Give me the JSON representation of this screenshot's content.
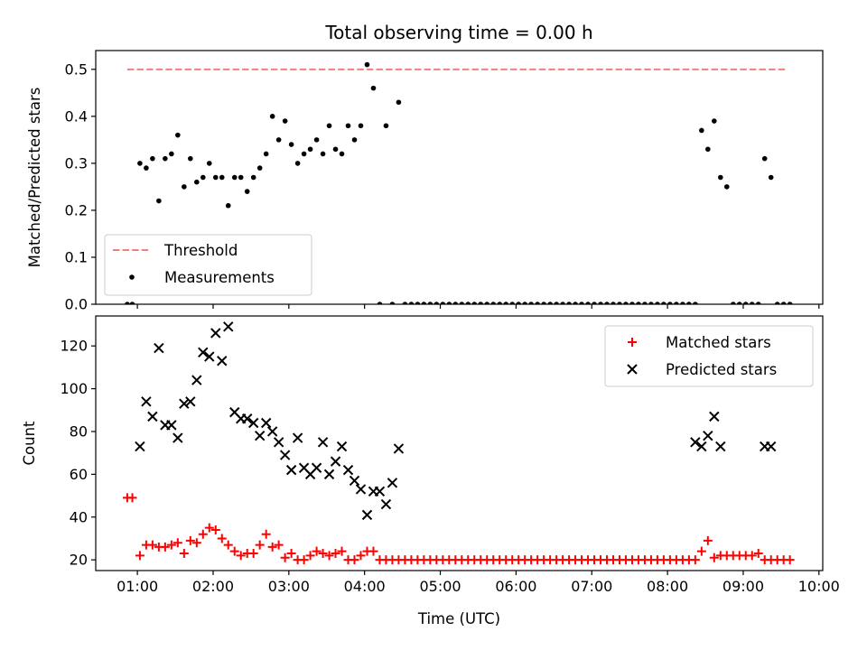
{
  "chart_data": [
    {
      "type": "scatter",
      "title": "Total observing time = 0.00 h",
      "xlabel": "",
      "ylabel": "Matched/Predicted stars",
      "xlim": [
        "00:27",
        "10:03"
      ],
      "ylim": [
        0,
        0.54
      ],
      "yticks": [
        0.0,
        0.1,
        0.2,
        0.3,
        0.4,
        0.5
      ],
      "xticks": [
        "01:00",
        "02:00",
        "03:00",
        "04:00",
        "05:00",
        "06:00",
        "07:00",
        "08:00",
        "09:00",
        "10:00"
      ],
      "grid": false,
      "legend_position": "lower-left",
      "series": [
        {
          "name": "Threshold",
          "style": "dashed-line",
          "color": "#f08080",
          "x": [
            "00:52",
            "09:35"
          ],
          "y": [
            0.5,
            0.5
          ]
        },
        {
          "name": "Measurements",
          "style": "dot",
          "color": "#000000",
          "x": [
            "00:52",
            "00:56",
            "01:02",
            "01:07",
            "01:12",
            "01:17",
            "01:22",
            "01:27",
            "01:32",
            "01:37",
            "01:42",
            "01:47",
            "01:52",
            "01:57",
            "02:02",
            "02:07",
            "02:12",
            "02:17",
            "02:22",
            "02:27",
            "02:32",
            "02:37",
            "02:42",
            "02:47",
            "02:52",
            "02:57",
            "03:02",
            "03:07",
            "03:12",
            "03:17",
            "03:22",
            "03:27",
            "03:32",
            "03:37",
            "03:42",
            "03:47",
            "03:52",
            "03:57",
            "04:02",
            "04:07",
            "04:12",
            "04:17",
            "04:22",
            "04:27",
            "04:32",
            "04:37",
            "04:42",
            "04:47",
            "04:52",
            "04:57",
            "05:02",
            "05:07",
            "05:12",
            "05:17",
            "05:22",
            "05:27",
            "05:32",
            "05:37",
            "05:42",
            "05:47",
            "05:52",
            "05:57",
            "06:02",
            "06:07",
            "06:12",
            "06:17",
            "06:22",
            "06:27",
            "06:32",
            "06:37",
            "06:42",
            "06:47",
            "06:52",
            "06:57",
            "07:02",
            "07:07",
            "07:12",
            "07:17",
            "07:22",
            "07:27",
            "07:32",
            "07:37",
            "07:42",
            "07:47",
            "07:52",
            "07:57",
            "08:02",
            "08:07",
            "08:12",
            "08:17",
            "08:22",
            "08:27",
            "08:32",
            "08:37",
            "08:42",
            "08:47",
            "08:52",
            "08:57",
            "09:02",
            "09:07",
            "09:12",
            "09:17",
            "09:22",
            "09:27",
            "09:32",
            "09:37"
          ],
          "y": [
            0,
            0,
            0.3,
            0.29,
            0.31,
            0.22,
            0.31,
            0.32,
            0.36,
            0.25,
            0.31,
            0.26,
            0.27,
            0.3,
            0.27,
            0.27,
            0.21,
            0.27,
            0.27,
            0.24,
            0.27,
            0.29,
            0.32,
            0.4,
            0.35,
            0.39,
            0.34,
            0.3,
            0.32,
            0.33,
            0.35,
            0.32,
            0.38,
            0.33,
            0.32,
            0.38,
            0.35,
            0.38,
            0.51,
            0.46,
            0,
            0.38,
            0,
            0.43,
            0,
            0,
            0,
            0,
            0,
            0,
            0,
            0,
            0,
            0,
            0,
            0,
            0,
            0,
            0,
            0,
            0,
            0,
            0,
            0,
            0,
            0,
            0,
            0,
            0,
            0,
            0,
            0,
            0,
            0,
            0,
            0,
            0,
            0,
            0,
            0,
            0,
            0,
            0,
            0,
            0,
            0,
            0,
            0,
            0,
            0,
            0,
            0.37,
            0.33,
            0.39,
            0.27,
            0.25,
            0,
            0,
            0,
            0,
            0,
            0.31,
            0.27,
            0,
            0,
            0
          ]
        }
      ]
    },
    {
      "type": "scatter",
      "title": "",
      "xlabel": "Time (UTC)",
      "ylabel": "Count",
      "xlim": [
        "00:27",
        "10:03"
      ],
      "ylim": [
        15,
        134
      ],
      "yticks": [
        20,
        40,
        60,
        80,
        100,
        120
      ],
      "xticks": [
        "01:00",
        "02:00",
        "03:00",
        "04:00",
        "05:00",
        "06:00",
        "07:00",
        "08:00",
        "09:00",
        "10:00"
      ],
      "grid": false,
      "legend_position": "upper-right",
      "series": [
        {
          "name": "Matched stars",
          "style": "plus",
          "color": "#ff0000",
          "x": [
            "00:52",
            "00:56",
            "01:02",
            "01:07",
            "01:12",
            "01:17",
            "01:22",
            "01:27",
            "01:32",
            "01:37",
            "01:42",
            "01:47",
            "01:52",
            "01:57",
            "02:02",
            "02:07",
            "02:12",
            "02:17",
            "02:22",
            "02:27",
            "02:32",
            "02:37",
            "02:42",
            "02:47",
            "02:52",
            "02:57",
            "03:02",
            "03:07",
            "03:12",
            "03:17",
            "03:22",
            "03:27",
            "03:32",
            "03:37",
            "03:42",
            "03:47",
            "03:52",
            "03:57",
            "04:02",
            "04:07",
            "04:12",
            "04:17",
            "04:22",
            "04:27",
            "04:32",
            "04:37",
            "04:42",
            "04:47",
            "04:52",
            "04:57",
            "05:02",
            "05:07",
            "05:12",
            "05:17",
            "05:22",
            "05:27",
            "05:32",
            "05:37",
            "05:42",
            "05:47",
            "05:52",
            "05:57",
            "06:02",
            "06:07",
            "06:12",
            "06:17",
            "06:22",
            "06:27",
            "06:32",
            "06:37",
            "06:42",
            "06:47",
            "06:52",
            "06:57",
            "07:02",
            "07:07",
            "07:12",
            "07:17",
            "07:22",
            "07:27",
            "07:32",
            "07:37",
            "07:42",
            "07:47",
            "07:52",
            "07:57",
            "08:02",
            "08:07",
            "08:12",
            "08:17",
            "08:22",
            "08:27",
            "08:32",
            "08:37",
            "08:42",
            "08:47",
            "08:52",
            "08:57",
            "09:02",
            "09:07",
            "09:12",
            "09:17",
            "09:22",
            "09:27",
            "09:32",
            "09:37"
          ],
          "y": [
            49,
            49,
            22,
            27,
            27,
            26,
            26,
            27,
            28,
            23,
            29,
            28,
            32,
            35,
            34,
            30,
            27,
            24,
            22,
            23,
            23,
            27,
            32,
            26,
            27,
            21,
            23,
            20,
            20,
            22,
            24,
            23,
            22,
            23,
            24,
            20,
            20,
            22,
            24,
            24,
            20,
            20,
            20,
            20,
            20,
            20,
            20,
            20,
            20,
            20,
            20,
            20,
            20,
            20,
            20,
            20,
            20,
            20,
            20,
            20,
            20,
            20,
            20,
            20,
            20,
            20,
            20,
            20,
            20,
            20,
            20,
            20,
            20,
            20,
            20,
            20,
            20,
            20,
            20,
            20,
            20,
            20,
            20,
            20,
            20,
            20,
            20,
            20,
            20,
            20,
            20,
            24,
            29,
            21,
            22,
            22,
            22,
            22,
            22,
            22,
            23,
            20,
            20,
            20,
            20,
            20
          ]
        },
        {
          "name": "Predicted stars",
          "style": "x",
          "color": "#000000",
          "x": [
            "01:02",
            "01:07",
            "01:12",
            "01:17",
            "01:22",
            "01:27",
            "01:32",
            "01:37",
            "01:42",
            "01:47",
            "01:52",
            "01:57",
            "02:02",
            "02:07",
            "02:12",
            "02:17",
            "02:22",
            "02:27",
            "02:32",
            "02:37",
            "02:42",
            "02:47",
            "02:52",
            "02:57",
            "03:02",
            "03:07",
            "03:12",
            "03:17",
            "03:22",
            "03:27",
            "03:32",
            "03:37",
            "03:42",
            "03:47",
            "03:52",
            "03:57",
            "04:02",
            "04:07",
            "04:12",
            "04:17",
            "04:22",
            "04:27",
            "08:22",
            "08:27",
            "08:32",
            "08:37",
            "08:42",
            "09:17",
            "09:22"
          ],
          "y": [
            73,
            94,
            87,
            119,
            83,
            83,
            77,
            93,
            94,
            104,
            117,
            115,
            126,
            113,
            129,
            89,
            86,
            86,
            84,
            78,
            84,
            80,
            75,
            69,
            62,
            77,
            63,
            60,
            63,
            75,
            60,
            66,
            73,
            62,
            57,
            53,
            41,
            52,
            52,
            46,
            56,
            72,
            75,
            73,
            78,
            87,
            73,
            73,
            73
          ]
        }
      ]
    }
  ]
}
